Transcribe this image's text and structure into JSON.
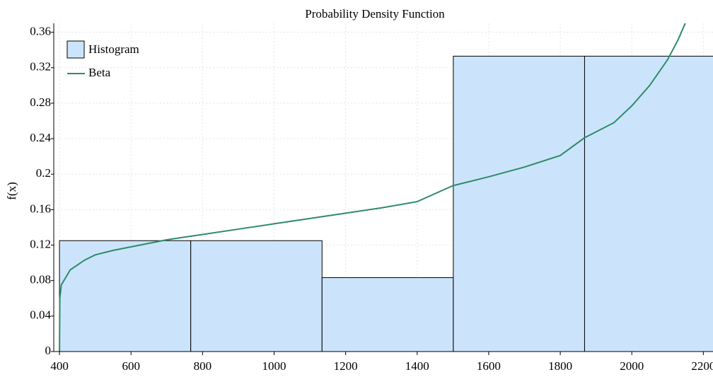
{
  "chart_data": {
    "type": "histogram",
    "title": "Probability Density Function",
    "y_label": "f(x)",
    "name": "Histogram",
    "color": "#cce4fb",
    "bins": [
      400,
      767,
      1134,
      1501,
      1868,
      2235
    ],
    "values": [
      0.125,
      0.125,
      0.0833,
      0.333,
      0.333
    ],
    "series": [
      {
        "name": "Beta",
        "type": "line",
        "color": "#2e8b67",
        "x": [
          400,
          401,
          405,
          430,
          470,
          500,
          550,
          600,
          700,
          800,
          900,
          1000,
          1100,
          1200,
          1300,
          1400,
          1500,
          1600,
          1700,
          1800,
          1868,
          1950,
          2000,
          2050,
          2100,
          2130,
          2160
        ],
        "values": [
          0,
          0.06,
          0.075,
          0.092,
          0.103,
          0.109,
          0.114,
          0.118,
          0.126,
          0.132,
          0.138,
          0.144,
          0.15,
          0.156,
          0.162,
          0.169,
          0.187,
          0.197,
          0.208,
          0.221,
          0.241,
          0.258,
          0.277,
          0.3,
          0.329,
          0.352,
          0.38
        ]
      }
    ],
    "xlim": [
      384,
      2227
    ],
    "ylim": [
      0,
      0.37
    ],
    "xticks": [
      400,
      600,
      800,
      1000,
      1200,
      1400,
      1600,
      1800,
      2000,
      2200
    ],
    "yticks": [
      0,
      0.04,
      0.08,
      0.12,
      0.16,
      0.2,
      0.24,
      0.28,
      0.32,
      0.36
    ],
    "grid": true,
    "legend": "upper left"
  }
}
